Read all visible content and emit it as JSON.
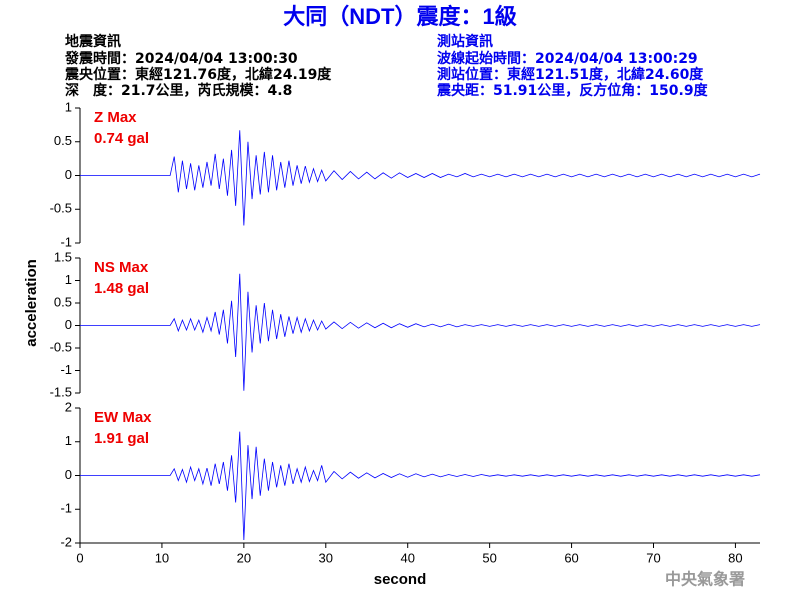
{
  "header": {
    "title": "大同（NDT）震度：1級",
    "event": {
      "heading": "地震資訊",
      "lines": [
        "發震時間：2024/04/04 13:00:30",
        "震央位置：東經121.76度，北緯24.19度",
        "深　度：21.7公里，芮氏規模：4.8"
      ]
    },
    "station": {
      "heading": "測站資訊",
      "lines": [
        "波線起始時間：2024/04/04 13:00:29",
        "測站位置：東經121.51度，北緯24.60度",
        "震央距：51.91公里，反方位角：150.9度"
      ]
    },
    "footer": "中央氣象署"
  },
  "chart_data": [
    {
      "type": "line",
      "annotations": [
        "Z Max",
        "0.74 gal"
      ],
      "color": "#0000ff",
      "xlim": [
        0,
        83
      ],
      "ylim": [
        -1,
        1
      ],
      "yticks": [
        -1,
        -0.5,
        0,
        0.5,
        1
      ],
      "x": [
        0,
        11,
        11.5,
        12,
        12.5,
        13,
        13.5,
        14,
        14.5,
        15,
        15.5,
        16,
        16.5,
        17,
        17.5,
        18,
        18.5,
        19,
        19.5,
        20,
        20.5,
        21,
        21.5,
        22,
        22.5,
        23,
        23.5,
        24,
        24.5,
        25,
        25.5,
        26,
        26.5,
        27,
        27.5,
        28,
        28.5,
        29,
        29.5,
        30,
        31,
        32,
        33,
        34,
        35,
        36,
        37,
        38,
        39,
        40,
        41,
        42,
        43,
        44,
        45,
        46,
        47,
        48,
        49,
        50,
        51,
        52,
        53,
        54,
        55,
        56,
        57,
        58,
        59,
        60,
        61,
        62,
        63,
        64,
        65,
        66,
        67,
        68,
        69,
        70,
        71,
        72,
        73,
        74,
        75,
        76,
        77,
        78,
        79,
        80,
        81,
        82,
        83
      ],
      "values": [
        0,
        0,
        0.28,
        -0.25,
        0.22,
        -0.2,
        0.18,
        -0.22,
        0.15,
        -0.18,
        0.2,
        -0.15,
        0.32,
        -0.2,
        0.25,
        -0.3,
        0.38,
        -0.45,
        0.67,
        -0.74,
        0.5,
        -0.35,
        0.3,
        -0.28,
        0.35,
        -0.25,
        0.3,
        -0.22,
        0.2,
        -0.18,
        0.22,
        -0.15,
        0.15,
        -0.12,
        0.14,
        -0.1,
        0.1,
        -0.09,
        0.08,
        -0.08,
        0.07,
        -0.06,
        0.06,
        -0.05,
        0.05,
        -0.05,
        0.04,
        -0.04,
        0.04,
        -0.03,
        0.03,
        -0.03,
        0.03,
        -0.03,
        0.02,
        -0.02,
        0.03,
        -0.02,
        0.02,
        -0.02,
        0.02,
        -0.02,
        0.02,
        -0.02,
        0.02,
        -0.02,
        0.02,
        -0.02,
        0.02,
        -0.02,
        0.02,
        -0.02,
        0.02,
        -0.02,
        0.02,
        -0.02,
        0.02,
        -0.02,
        0.02,
        -0.02,
        0.02,
        -0.02,
        0.02,
        -0.02,
        0.02,
        -0.02,
        0.02,
        -0.02,
        0.02,
        -0.02,
        0.02,
        -0.02,
        0.02
      ]
    },
    {
      "type": "line",
      "annotations": [
        "NS Max",
        "1.48 gal"
      ],
      "color": "#0000ff",
      "ylabel": "acceleration",
      "xlim": [
        0,
        83
      ],
      "ylim": [
        -1.5,
        1.5
      ],
      "yticks": [
        -1.5,
        -1,
        -0.5,
        0,
        0.5,
        1,
        1.5
      ],
      "x": [
        0,
        11,
        11.5,
        12,
        12.5,
        13,
        13.5,
        14,
        14.5,
        15,
        15.5,
        16,
        16.5,
        17,
        17.5,
        18,
        18.5,
        19,
        19.5,
        20,
        20.5,
        21,
        21.5,
        22,
        22.5,
        23,
        23.5,
        24,
        24.5,
        25,
        25.5,
        26,
        26.5,
        27,
        27.5,
        28,
        28.5,
        29,
        29.5,
        30,
        31,
        32,
        33,
        34,
        35,
        36,
        37,
        38,
        39,
        40,
        41,
        42,
        43,
        44,
        45,
        46,
        47,
        48,
        49,
        50,
        51,
        52,
        53,
        54,
        55,
        56,
        57,
        58,
        59,
        60,
        61,
        62,
        63,
        64,
        65,
        66,
        67,
        68,
        69,
        70,
        71,
        72,
        73,
        74,
        75,
        76,
        77,
        78,
        79,
        80,
        81,
        82,
        83
      ],
      "values": [
        0,
        0,
        0.15,
        -0.12,
        0.12,
        -0.1,
        0.15,
        -0.1,
        0.12,
        -0.15,
        0.18,
        -0.12,
        0.3,
        -0.2,
        0.35,
        -0.4,
        0.55,
        -0.7,
        1.15,
        -1.45,
        0.75,
        -0.6,
        0.45,
        -0.4,
        0.5,
        -0.35,
        0.35,
        -0.3,
        0.25,
        -0.25,
        0.2,
        -0.18,
        0.18,
        -0.15,
        0.15,
        -0.12,
        0.12,
        -0.1,
        0.1,
        -0.08,
        0.08,
        -0.07,
        0.07,
        -0.06,
        0.06,
        -0.05,
        0.05,
        -0.05,
        0.04,
        -0.04,
        0.04,
        -0.03,
        0.03,
        -0.03,
        0.03,
        -0.03,
        0.02,
        -0.02,
        0.02,
        -0.02,
        0.02,
        -0.02,
        0.02,
        -0.02,
        0.02,
        -0.02,
        0.02,
        -0.02,
        0.02,
        -0.02,
        0.02,
        -0.02,
        0.02,
        -0.02,
        0.02,
        -0.02,
        0.02,
        -0.02,
        0.02,
        -0.02,
        0.02,
        -0.02,
        0.02,
        -0.02,
        0.02,
        -0.02,
        0.02,
        -0.02,
        0.02,
        -0.02,
        0.02,
        -0.02,
        0.02
      ]
    },
    {
      "type": "line",
      "annotations": [
        "EW Max",
        "1.91 gal"
      ],
      "color": "#0000ff",
      "xlabel": "second",
      "xlim": [
        0,
        83
      ],
      "xticks": [
        0,
        10,
        20,
        30,
        40,
        50,
        60,
        70,
        80
      ],
      "ylim": [
        -2,
        2
      ],
      "yticks": [
        -2,
        -1,
        0,
        1,
        2
      ],
      "x": [
        0,
        11,
        11.5,
        12,
        12.5,
        13,
        13.5,
        14,
        14.5,
        15,
        15.5,
        16,
        16.5,
        17,
        17.5,
        18,
        18.5,
        19,
        19.5,
        20,
        20.5,
        21,
        21.5,
        22,
        22.5,
        23,
        23.5,
        24,
        24.5,
        25,
        25.5,
        26,
        26.5,
        27,
        27.5,
        28,
        28.5,
        29,
        29.5,
        30,
        31,
        32,
        33,
        34,
        35,
        36,
        37,
        38,
        39,
        40,
        41,
        42,
        43,
        44,
        45,
        46,
        47,
        48,
        49,
        50,
        51,
        52,
        53,
        54,
        55,
        56,
        57,
        58,
        59,
        60,
        61,
        62,
        63,
        64,
        65,
        66,
        67,
        68,
        69,
        70,
        71,
        72,
        73,
        74,
        75,
        76,
        77,
        78,
        79,
        80,
        81,
        82,
        83
      ],
      "values": [
        0,
        0,
        0.2,
        -0.15,
        0.18,
        -0.2,
        0.25,
        -0.15,
        0.2,
        -0.25,
        0.22,
        -0.3,
        0.35,
        -0.25,
        0.4,
        -0.45,
        0.6,
        -0.8,
        1.3,
        -1.91,
        0.9,
        -0.7,
        0.85,
        -0.6,
        0.5,
        -0.45,
        0.4,
        -0.35,
        0.3,
        -0.3,
        0.35,
        -0.25,
        0.2,
        -0.2,
        0.25,
        -0.18,
        0.15,
        -0.15,
        0.3,
        -0.2,
        0.12,
        -0.1,
        0.1,
        -0.08,
        0.08,
        -0.07,
        0.06,
        -0.06,
        0.05,
        -0.05,
        0.05,
        -0.04,
        0.04,
        -0.04,
        0.03,
        -0.03,
        0.03,
        -0.03,
        0.03,
        -0.02,
        0.02,
        -0.02,
        0.02,
        -0.02,
        0.02,
        -0.02,
        0.02,
        -0.02,
        0.02,
        -0.02,
        0.02,
        -0.02,
        0.02,
        -0.02,
        0.02,
        -0.02,
        0.02,
        -0.02,
        0.02,
        -0.02,
        0.02,
        -0.02,
        0.02,
        -0.02,
        0.02,
        -0.02,
        0.02,
        -0.02,
        0.02,
        -0.02,
        0.02,
        -0.02,
        0.02
      ]
    }
  ]
}
